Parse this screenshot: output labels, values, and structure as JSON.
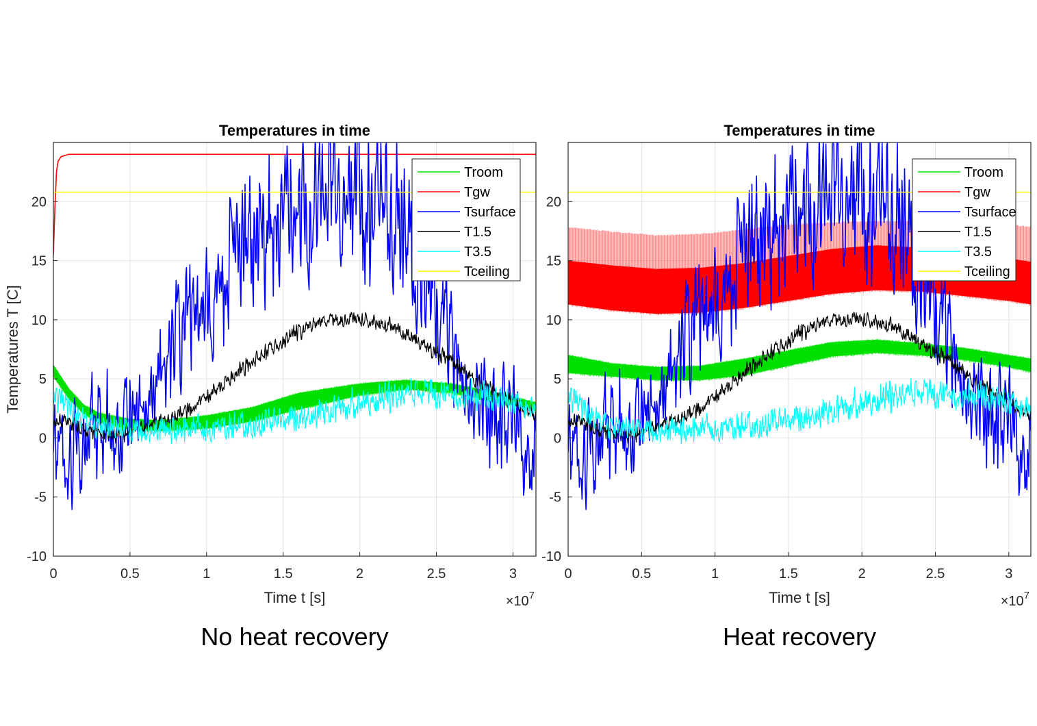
{
  "chart_data": [
    {
      "type": "line",
      "title": "Temperatures in time",
      "caption": "No heat recovery",
      "xlabel": "Time t [s]",
      "ylabel": "Temperatures T [C]",
      "x_exponent_base": "×10",
      "x_exponent_power": "7",
      "xlim": [
        0,
        3.15
      ],
      "ylim": [
        -10,
        25
      ],
      "xticks": [
        0,
        0.5,
        1,
        1.5,
        2,
        2.5,
        3
      ],
      "xtick_labels": [
        "0",
        "0.5",
        "1",
        "1.5",
        "2",
        "2.5",
        "3"
      ],
      "yticks": [
        -10,
        -5,
        0,
        5,
        10,
        15,
        20
      ],
      "ytick_labels": [
        "-10",
        "-5",
        "0",
        "5",
        "10",
        "15",
        "20"
      ],
      "grid": true,
      "legend_position": "top-right",
      "series": [
        {
          "name": "Troom",
          "color": "#00e000",
          "kind": "band",
          "x": [
            0,
            0.1,
            0.2,
            0.3,
            0.5,
            0.7,
            1.0,
            1.3,
            1.6,
            2.0,
            2.3,
            2.6,
            2.9,
            3.15
          ],
          "lower": [
            5.2,
            3.3,
            2.0,
            1.3,
            0.7,
            0.6,
            0.8,
            1.4,
            2.4,
            3.6,
            4.1,
            3.8,
            3.0,
            2.4
          ],
          "upper": [
            6.2,
            4.2,
            2.8,
            2.1,
            1.6,
            1.5,
            1.9,
            2.6,
            3.8,
            4.6,
            4.9,
            4.6,
            3.8,
            3.0
          ]
        },
        {
          "name": "Tgw",
          "color": "#ff0000",
          "kind": "line",
          "x": [
            0,
            0.01,
            0.02,
            0.03,
            0.05,
            0.1,
            0.5,
            1.0,
            2.0,
            3.15
          ],
          "values": [
            15.5,
            19.5,
            22.5,
            23.4,
            23.8,
            24.0,
            24.0,
            24.0,
            24.0,
            24.0
          ]
        },
        {
          "name": "Tsurface",
          "color": "#0000ff",
          "kind": "noisy",
          "x": [
            0,
            0.1,
            0.2,
            0.3,
            0.4,
            0.5,
            0.6,
            0.7,
            0.8,
            0.9,
            1.0,
            1.1,
            1.2,
            1.3,
            1.4,
            1.5,
            1.6,
            1.7,
            1.8,
            1.9,
            2.0,
            2.1,
            2.2,
            2.3,
            2.4,
            2.5,
            2.6,
            2.7,
            2.8,
            2.9,
            3.0,
            3.1,
            3.15
          ],
          "values": [
            0,
            -1,
            0,
            1,
            1,
            2,
            3,
            5,
            8,
            11,
            11,
            13,
            15,
            16,
            18,
            19,
            20,
            20,
            21,
            21,
            20,
            20,
            19,
            17,
            14,
            11,
            8,
            5,
            3,
            2,
            1,
            0,
            0
          ],
          "amplitude": [
            5,
            6,
            6,
            6,
            6,
            5,
            5,
            5,
            6,
            7,
            7,
            7,
            7,
            8,
            8,
            8,
            8,
            8,
            8,
            8,
            8,
            8,
            8,
            8,
            7,
            7,
            6,
            6,
            6,
            6,
            6,
            6,
            6
          ]
        },
        {
          "name": "T1.5",
          "color": "#000000",
          "kind": "noisy",
          "x": [
            0,
            0.2,
            0.4,
            0.5,
            0.6,
            0.8,
            1.0,
            1.2,
            1.4,
            1.6,
            1.8,
            2.0,
            2.2,
            2.4,
            2.6,
            2.8,
            3.0,
            3.15
          ],
          "values": [
            1.6,
            0.8,
            0.2,
            0.4,
            0.8,
            1.8,
            3.5,
            5.5,
            7.5,
            9.0,
            10.0,
            10.0,
            9.5,
            8.0,
            6.5,
            4.5,
            3.0,
            2.0
          ],
          "amplitude": [
            0.8,
            0.8,
            0.8,
            0.8,
            0.8,
            0.8,
            0.8,
            0.8,
            0.8,
            0.8,
            0.8,
            0.8,
            0.8,
            0.8,
            0.8,
            0.8,
            0.8,
            0.8
          ]
        },
        {
          "name": "T3.5",
          "color": "#00ffff",
          "kind": "noisy",
          "x": [
            0,
            0.1,
            0.2,
            0.3,
            0.5,
            0.7,
            1.0,
            1.3,
            1.6,
            2.0,
            2.3,
            2.6,
            2.9,
            3.15
          ],
          "values": [
            3.5,
            2.4,
            1.5,
            0.8,
            0.6,
            0.7,
            0.8,
            1.0,
            1.8,
            3.0,
            3.8,
            3.8,
            3.4,
            2.8
          ],
          "amplitude": [
            1.4,
            1.3,
            1.3,
            1.3,
            1.3,
            1.3,
            1.4,
            1.4,
            1.4,
            1.5,
            1.5,
            1.5,
            1.5,
            1.5
          ]
        },
        {
          "name": "Tceiling",
          "color": "#ffff00",
          "kind": "line",
          "x": [
            0,
            3.15
          ],
          "values": [
            20.8,
            20.8
          ]
        }
      ]
    },
    {
      "type": "line",
      "title": "Temperatures in time",
      "caption": "Heat recovery",
      "xlabel": "Time t [s]",
      "ylabel": "",
      "x_exponent_base": "×10",
      "x_exponent_power": "7",
      "xlim": [
        0,
        3.15
      ],
      "ylim": [
        -10,
        25
      ],
      "xticks": [
        0,
        0.5,
        1,
        1.5,
        2,
        2.5,
        3
      ],
      "xtick_labels": [
        "0",
        "0.5",
        "1",
        "1.5",
        "2",
        "2.5",
        "3"
      ],
      "yticks": [
        -10,
        -5,
        0,
        5,
        10,
        15,
        20
      ],
      "ytick_labels": [
        "-10",
        "-5",
        "0",
        "5",
        "10",
        "15",
        "20"
      ],
      "grid": true,
      "legend_position": "top-right",
      "series": [
        {
          "name": "Troom",
          "color": "#00e000",
          "kind": "band",
          "x": [
            0,
            0.3,
            0.6,
            0.9,
            1.2,
            1.5,
            1.8,
            2.1,
            2.4,
            2.7,
            3.0,
            3.15
          ],
          "lower": [
            5.5,
            5.2,
            4.9,
            4.9,
            5.3,
            6.1,
            6.9,
            7.2,
            7.0,
            6.6,
            6.0,
            5.6
          ],
          "upper": [
            7.0,
            6.3,
            6.0,
            6.1,
            6.7,
            7.4,
            8.1,
            8.3,
            8.0,
            7.6,
            7.0,
            6.7
          ]
        },
        {
          "name": "Tgw",
          "color": "#ff0000",
          "kind": "band",
          "x": [
            0,
            0.3,
            0.6,
            0.9,
            1.2,
            1.5,
            1.8,
            2.1,
            2.4,
            2.7,
            3.0,
            3.15
          ],
          "lower": [
            11.3,
            10.8,
            10.5,
            10.6,
            11.0,
            11.6,
            12.2,
            12.5,
            12.4,
            12.0,
            11.6,
            11.3
          ],
          "upper": [
            15.0,
            14.6,
            14.3,
            14.4,
            14.8,
            15.4,
            16.0,
            16.3,
            16.1,
            15.7,
            15.2,
            14.9
          ],
          "spike_top": [
            17.8,
            17.4,
            17.1,
            17.2,
            17.6,
            18.0,
            18.2,
            18.3,
            18.3,
            18.2,
            18.0,
            17.8
          ]
        },
        {
          "name": "Tsurface",
          "color": "#0000ff",
          "kind": "noisy",
          "x": [
            0,
            0.1,
            0.2,
            0.3,
            0.4,
            0.5,
            0.6,
            0.7,
            0.8,
            0.9,
            1.0,
            1.1,
            1.2,
            1.3,
            1.4,
            1.5,
            1.6,
            1.7,
            1.8,
            1.9,
            2.0,
            2.1,
            2.2,
            2.3,
            2.4,
            2.5,
            2.6,
            2.7,
            2.8,
            2.9,
            3.0,
            3.1,
            3.15
          ],
          "values": [
            0,
            -1,
            0,
            1,
            1,
            2,
            3,
            5,
            8,
            11,
            11,
            13,
            15,
            16,
            18,
            19,
            20,
            20,
            21,
            21,
            20,
            20,
            19,
            17,
            14,
            11,
            8,
            5,
            3,
            2,
            1,
            0,
            0
          ],
          "amplitude": [
            5,
            6,
            6,
            6,
            6,
            5,
            5,
            5,
            6,
            7,
            7,
            7,
            7,
            8,
            8,
            8,
            8,
            8,
            8,
            8,
            8,
            8,
            8,
            8,
            7,
            7,
            6,
            6,
            6,
            6,
            6,
            6,
            6
          ]
        },
        {
          "name": "T1.5",
          "color": "#000000",
          "kind": "noisy",
          "x": [
            0,
            0.2,
            0.4,
            0.5,
            0.6,
            0.8,
            1.0,
            1.2,
            1.4,
            1.6,
            1.8,
            2.0,
            2.2,
            2.4,
            2.6,
            2.8,
            3.0,
            3.15
          ],
          "values": [
            1.6,
            0.8,
            0.2,
            0.4,
            0.8,
            1.8,
            3.5,
            5.5,
            7.5,
            9.0,
            10.0,
            10.0,
            9.5,
            8.0,
            6.5,
            4.5,
            3.0,
            2.0
          ],
          "amplitude": [
            0.8,
            0.8,
            0.8,
            0.8,
            0.8,
            0.8,
            0.8,
            0.8,
            0.8,
            0.8,
            0.8,
            0.8,
            0.8,
            0.8,
            0.8,
            0.8,
            0.8,
            0.8
          ]
        },
        {
          "name": "T3.5",
          "color": "#00ffff",
          "kind": "noisy",
          "x": [
            0,
            0.1,
            0.2,
            0.3,
            0.5,
            0.7,
            1.0,
            1.3,
            1.6,
            2.0,
            2.3,
            2.6,
            2.9,
            3.15
          ],
          "values": [
            3.5,
            2.4,
            1.5,
            0.8,
            0.6,
            0.7,
            0.8,
            1.0,
            1.8,
            3.0,
            3.8,
            3.8,
            3.4,
            2.8
          ],
          "amplitude": [
            1.4,
            1.3,
            1.3,
            1.3,
            1.3,
            1.3,
            1.4,
            1.4,
            1.4,
            1.5,
            1.5,
            1.5,
            1.5,
            1.5
          ]
        },
        {
          "name": "Tceiling",
          "color": "#ffff00",
          "kind": "line",
          "x": [
            0,
            3.15
          ],
          "values": [
            20.8,
            20.8
          ]
        }
      ]
    }
  ]
}
